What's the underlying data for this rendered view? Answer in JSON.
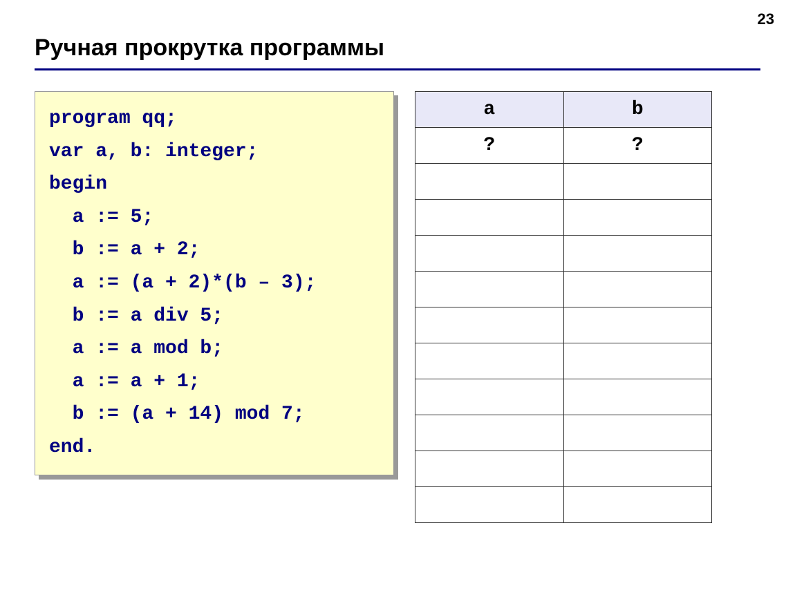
{
  "page": {
    "number": "23",
    "title": "Ручная прокрутка программы"
  },
  "code": {
    "lines": [
      "program qq;",
      "var a, b: integer;",
      "begin",
      "  a := 5;",
      "  b := a + 2;",
      "  a := (a + 2)*(b – 3);",
      "  b := a div 5;",
      "  a := a mod b;",
      "  a := a + 1;",
      "  b := (a + 14) mod 7;",
      "end."
    ],
    "background_color": "#ffffcc",
    "text_color": "#000080",
    "font_family": "Courier New",
    "font_size": 28,
    "shadow_color": "#999999"
  },
  "table": {
    "columns": [
      "a",
      "b"
    ],
    "rows": [
      [
        "?",
        "?"
      ],
      [
        "",
        ""
      ],
      [
        "",
        ""
      ],
      [
        "",
        ""
      ],
      [
        "",
        ""
      ],
      [
        "",
        ""
      ],
      [
        "",
        ""
      ],
      [
        "",
        ""
      ],
      [
        "",
        ""
      ],
      [
        "",
        ""
      ],
      [
        "",
        ""
      ]
    ],
    "header_bg": "#e8e8f8",
    "border_color": "#333333",
    "font_family": "Courier New",
    "font_size": 28
  },
  "colors": {
    "underline": "#000080",
    "background": "#ffffff"
  }
}
